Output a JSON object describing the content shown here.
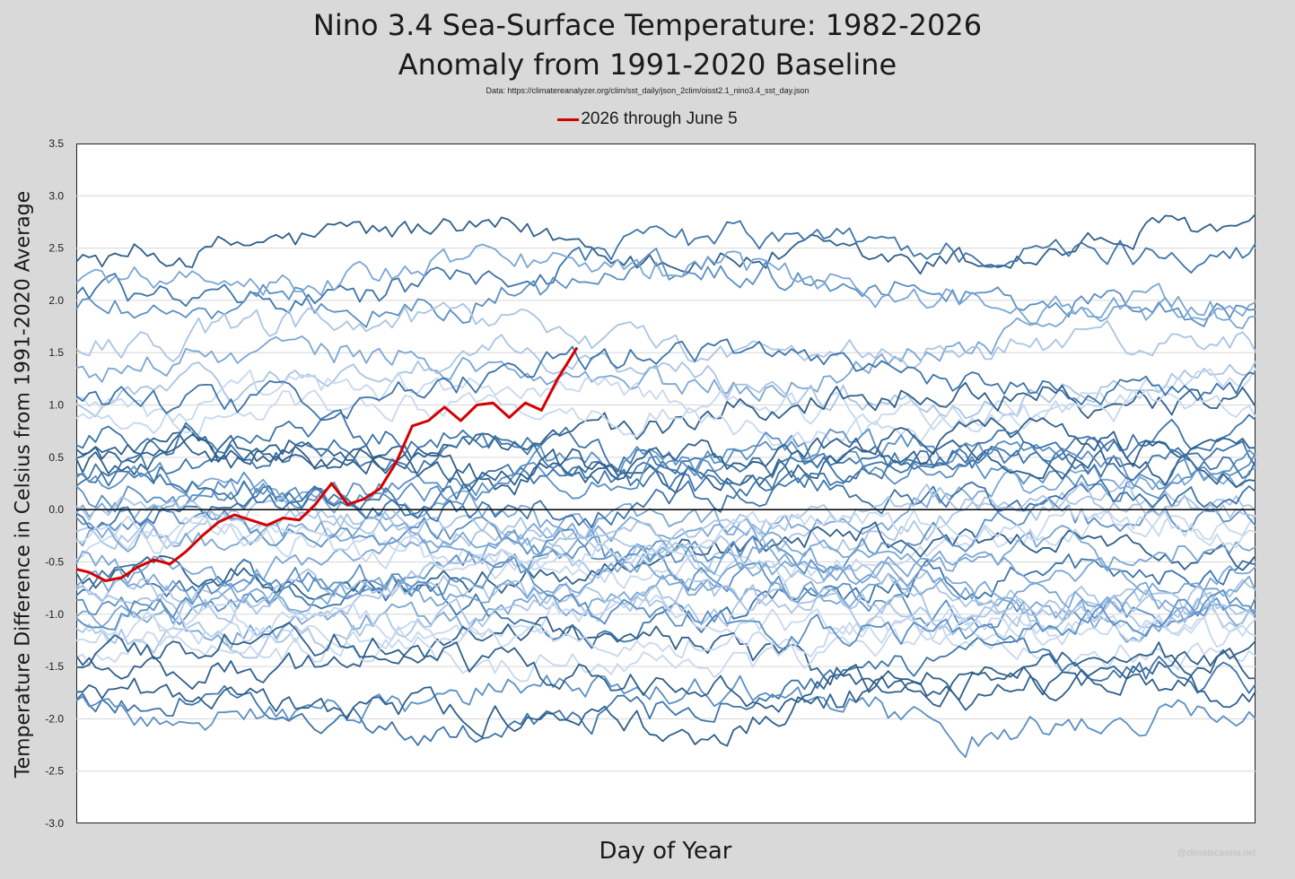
{
  "chart_data": {
    "type": "line",
    "title": "Nino 3.4 Sea-Surface Temperature: 1982-2026",
    "subtitle": "Anomaly from 1991-2020 Baseline",
    "source_note": "Data: https://climatereanalyzer.org/clim/sst_daily/json_2clim/oisst2.1_nino3.4_sst_day.json",
    "xlabel": "Day of Year",
    "ylabel": "Temperature Difference in Celsius from 1991-2020 Average",
    "xlim": [
      1,
      366
    ],
    "ylim": [
      -3.0,
      3.5
    ],
    "y_ticks": [
      "3.5",
      "3.0",
      "2.5",
      "2.0",
      "1.5",
      "1.0",
      "0.5",
      "0.0",
      "-0.5",
      "-1.0",
      "-1.5",
      "-2.0",
      "-2.5",
      "-3.0"
    ],
    "grid": "horizontal",
    "legend": {
      "position": "top-center",
      "entries": [
        "2026 through June 5"
      ]
    },
    "watermark": "@climatecasino.net",
    "highlight_series": {
      "name": "2026 through June 5",
      "color": "#d40000",
      "x": [
        1,
        5,
        10,
        15,
        20,
        25,
        30,
        35,
        40,
        45,
        50,
        55,
        60,
        65,
        70,
        75,
        80,
        85,
        90,
        95,
        100,
        105,
        110,
        115,
        120,
        125,
        130,
        135,
        140,
        145,
        150,
        153,
        156
      ],
      "y": [
        -0.57,
        -0.6,
        -0.68,
        -0.65,
        -0.55,
        -0.48,
        -0.52,
        -0.4,
        -0.25,
        -0.12,
        -0.05,
        -0.1,
        -0.15,
        -0.08,
        -0.1,
        0.05,
        0.25,
        0.05,
        0.1,
        0.2,
        0.45,
        0.8,
        0.85,
        0.98,
        0.85,
        1.0,
        1.02,
        0.88,
        1.02,
        0.95,
        1.25,
        1.4,
        1.55
      ]
    },
    "background_series": {
      "count": 44,
      "years": "1982-2025",
      "colors": [
        "#2f5f8a",
        "#3d74a8",
        "#5b8fc2",
        "#7aa6d4",
        "#a9c4e4",
        "#c7d8ee"
      ],
      "start_values": [
        2.35,
        2.1,
        1.95,
        1.3,
        1.05,
        0.85,
        0.6,
        0.35,
        0.15,
        -0.05,
        -0.25,
        -0.4,
        -0.6,
        -0.75,
        -0.9,
        -1.0,
        -1.1,
        -1.3,
        -1.5,
        -1.75,
        -1.9,
        2.2,
        1.6,
        0.95,
        0.45,
        0.05,
        -0.15,
        -0.5,
        -0.85,
        -1.2,
        -1.85,
        0.7,
        0.25,
        -0.3,
        -0.65,
        -1.05,
        0.5,
        1.1,
        -0.95,
        -0.7,
        0.0,
        -0.2,
        -1.4,
        0.3
      ],
      "end_values": [
        2.7,
        2.45,
        2.1,
        1.8,
        1.4,
        1.2,
        1.05,
        0.75,
        0.5,
        0.2,
        0.0,
        -0.2,
        -0.45,
        -0.65,
        -0.8,
        -0.95,
        -1.05,
        -1.2,
        -1.45,
        -1.7,
        -1.95,
        2.0,
        1.6,
        0.9,
        0.45,
        0.1,
        -0.1,
        -0.55,
        -0.9,
        -1.25,
        -1.75,
        0.65,
        0.3,
        -0.35,
        -0.7,
        -1.1,
        0.55,
        1.15,
        -1.0,
        -0.8,
        0.05,
        -0.25,
        -1.4,
        0.35
      ]
    }
  }
}
